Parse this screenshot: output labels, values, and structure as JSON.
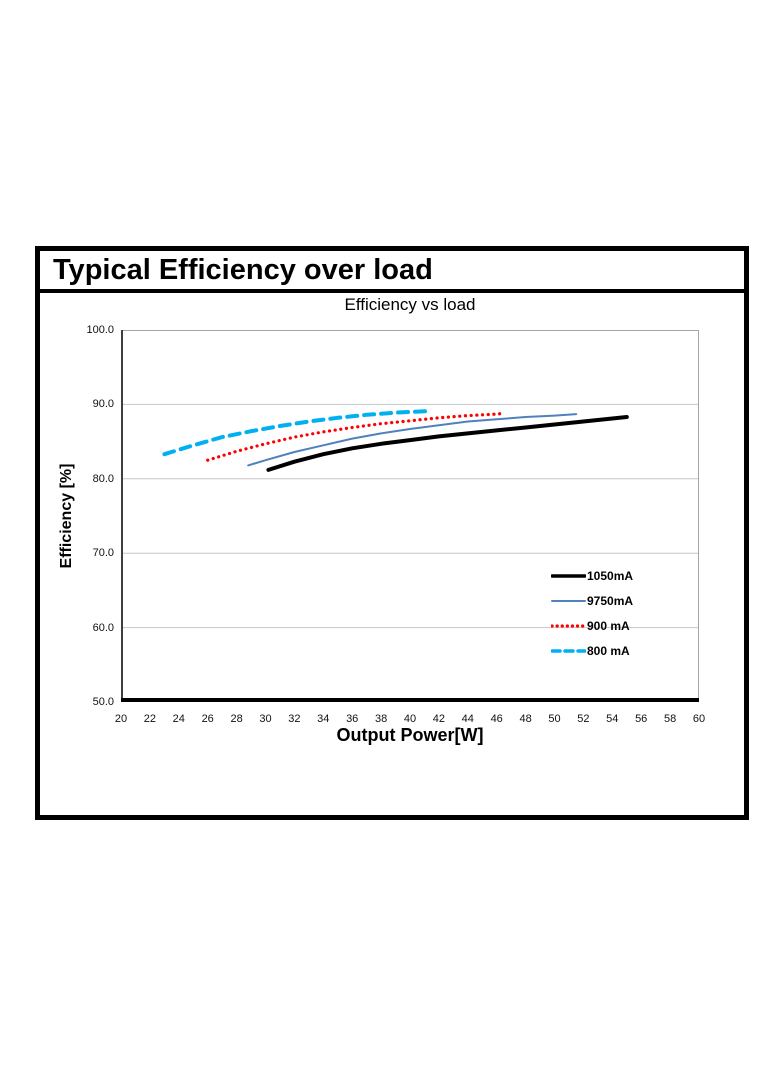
{
  "page": {
    "main_title": "Typical Efficiency over load"
  },
  "colors": {
    "gridline": "#c6c6c6",
    "plot_border": "#a6a6a6",
    "y_axis_line": "#3f3f3f",
    "x_axis_line": "#000000",
    "background": "#ffffff"
  },
  "chart_data": {
    "type": "line",
    "title": "Efficiency vs load",
    "xlabel": "Output Power[W]",
    "ylabel": "Efficiency [%]",
    "xlim": [
      20,
      60
    ],
    "ylim": [
      50,
      100
    ],
    "x_ticks": [
      20,
      22,
      24,
      26,
      28,
      30,
      32,
      34,
      36,
      38,
      40,
      42,
      44,
      46,
      48,
      50,
      52,
      54,
      56,
      58,
      60
    ],
    "y_ticks": [
      {
        "value": 100,
        "label": "100.0"
      },
      {
        "value": 90,
        "label": "90.0"
      },
      {
        "value": 80,
        "label": "80.0"
      },
      {
        "value": 70,
        "label": "70.0"
      },
      {
        "value": 60,
        "label": "60.0"
      },
      {
        "value": 50,
        "label": "50.0"
      }
    ],
    "grid": "horizontal",
    "legend_position": "inside-right",
    "series": [
      {
        "name": "1050mA",
        "color": "#000000",
        "style": "solid",
        "width": 4,
        "points": [
          [
            30.2,
            81.2
          ],
          [
            32,
            82.3
          ],
          [
            34,
            83.3
          ],
          [
            36,
            84.1
          ],
          [
            38,
            84.7
          ],
          [
            40,
            85.2
          ],
          [
            42,
            85.7
          ],
          [
            44,
            86.1
          ],
          [
            46,
            86.5
          ],
          [
            48,
            86.9
          ],
          [
            50,
            87.3
          ],
          [
            52,
            87.7
          ],
          [
            54,
            88.1
          ],
          [
            55,
            88.3
          ]
        ]
      },
      {
        "name": "9750mA",
        "color": "#4f81bd",
        "style": "solid",
        "width": 2,
        "points": [
          [
            28.8,
            81.8
          ],
          [
            30,
            82.5
          ],
          [
            32,
            83.6
          ],
          [
            34,
            84.5
          ],
          [
            36,
            85.4
          ],
          [
            38,
            86.1
          ],
          [
            40,
            86.7
          ],
          [
            42,
            87.2
          ],
          [
            44,
            87.7
          ],
          [
            46,
            88.0
          ],
          [
            48,
            88.3
          ],
          [
            50,
            88.5
          ],
          [
            51.5,
            88.7
          ]
        ]
      },
      {
        "name": "900 mA",
        "color": "#ff0000",
        "style": "dotted",
        "width": 3.2,
        "points": [
          [
            26,
            82.5
          ],
          [
            28,
            83.7
          ],
          [
            30,
            84.7
          ],
          [
            32,
            85.6
          ],
          [
            34,
            86.3
          ],
          [
            36,
            86.9
          ],
          [
            38,
            87.4
          ],
          [
            40,
            87.8
          ],
          [
            42,
            88.2
          ],
          [
            44,
            88.5
          ],
          [
            46,
            88.7
          ],
          [
            46.5,
            88.8
          ]
        ]
      },
      {
        "name": "800 mA",
        "color": "#00b0f0",
        "style": "dashed",
        "width": 4,
        "points": [
          [
            23,
            83.3
          ],
          [
            25,
            84.5
          ],
          [
            27,
            85.6
          ],
          [
            29,
            86.4
          ],
          [
            31,
            87.1
          ],
          [
            33,
            87.7
          ],
          [
            35,
            88.2
          ],
          [
            37,
            88.6
          ],
          [
            39,
            88.9
          ],
          [
            41.3,
            89.1
          ]
        ]
      }
    ]
  }
}
